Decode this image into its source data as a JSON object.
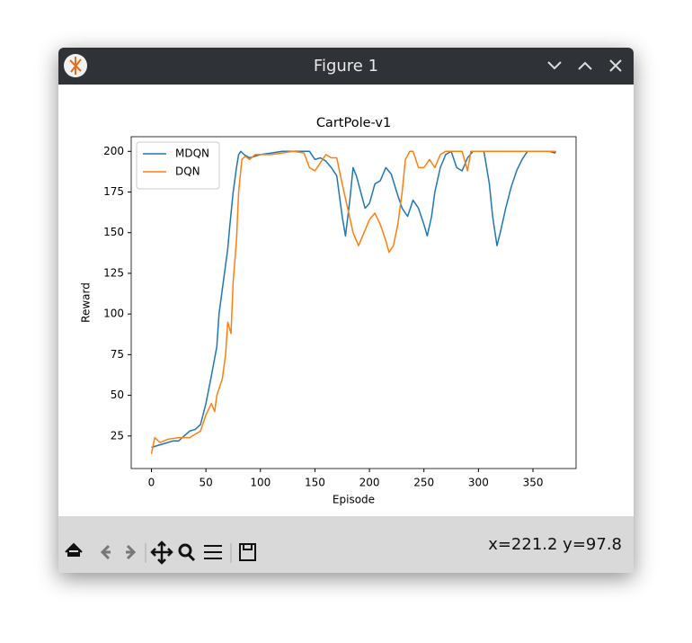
{
  "window": {
    "title": "Figure 1",
    "status": "x=221.2 y=97.8"
  },
  "chart_data": {
    "type": "line",
    "title": "CartPole-v1",
    "x_label": "Episode",
    "y_label": "Reward",
    "xlim": [
      -18.55,
      389.55
    ],
    "ylim": [
      5,
      209
    ],
    "xticks": [
      0,
      50,
      100,
      150,
      200,
      250,
      300,
      350
    ],
    "yticks": [
      25,
      50,
      75,
      100,
      125,
      150,
      175,
      200
    ],
    "legend": "upper left",
    "grid": false,
    "series": [
      {
        "name": "MDQN",
        "color": "#1f77b4",
        "x": [
          0,
          10,
          20,
          25,
          30,
          35,
          40,
          45,
          50,
          55,
          60,
          62,
          65,
          68,
          70,
          72,
          75,
          78,
          80,
          82,
          85,
          90,
          100,
          110,
          120,
          130,
          140,
          145,
          150,
          155,
          160,
          165,
          170,
          175,
          178,
          182,
          185,
          188,
          192,
          196,
          200,
          205,
          210,
          215,
          220,
          225,
          230,
          235,
          240,
          245,
          250,
          253,
          257,
          260,
          265,
          270,
          275,
          280,
          285,
          290,
          295,
          300,
          305,
          310,
          313,
          317,
          320,
          325,
          330,
          335,
          340,
          345,
          350,
          360,
          365,
          370,
          371
        ],
        "values": [
          18,
          20,
          22,
          22,
          25,
          28,
          29,
          32,
          45,
          62,
          80,
          100,
          115,
          130,
          140,
          155,
          175,
          190,
          198,
          200,
          198,
          196,
          198,
          199,
          200,
          200,
          200,
          200,
          195,
          196,
          194,
          190,
          185,
          160,
          148,
          170,
          190,
          185,
          175,
          165,
          168,
          180,
          182,
          190,
          186,
          175,
          165,
          160,
          170,
          165,
          155,
          148,
          160,
          175,
          190,
          198,
          200,
          190,
          188,
          196,
          200,
          200,
          200,
          180,
          160,
          142,
          150,
          165,
          178,
          188,
          195,
          200,
          200,
          200,
          200,
          199,
          200
        ]
      },
      {
        "name": "DQN",
        "color": "#ff7f0e",
        "x": [
          0,
          3,
          8,
          15,
          25,
          35,
          45,
          50,
          55,
          58,
          60,
          65,
          68,
          70,
          73,
          75,
          78,
          80,
          83,
          86,
          90,
          95,
          100,
          110,
          120,
          130,
          140,
          145,
          150,
          160,
          165,
          170,
          175,
          180,
          185,
          190,
          195,
          200,
          205,
          210,
          215,
          218,
          222,
          226,
          230,
          233,
          237,
          240,
          245,
          250,
          255,
          260,
          265,
          270,
          275,
          280,
          285,
          290,
          293,
          300,
          310,
          320,
          330,
          340,
          350,
          360,
          371
        ],
        "values": [
          14,
          24,
          21,
          23,
          24,
          24,
          28,
          38,
          45,
          40,
          50,
          60,
          75,
          95,
          88,
          120,
          145,
          175,
          195,
          197,
          195,
          198,
          198,
          198,
          199,
          200,
          199,
          190,
          188,
          198,
          196,
          196,
          180,
          165,
          150,
          142,
          150,
          158,
          162,
          155,
          145,
          138,
          142,
          155,
          175,
          195,
          200,
          200,
          190,
          190,
          195,
          190,
          198,
          200,
          200,
          200,
          200,
          188,
          200,
          200,
          200,
          200,
          200,
          200,
          200,
          200,
          200
        ]
      }
    ]
  }
}
